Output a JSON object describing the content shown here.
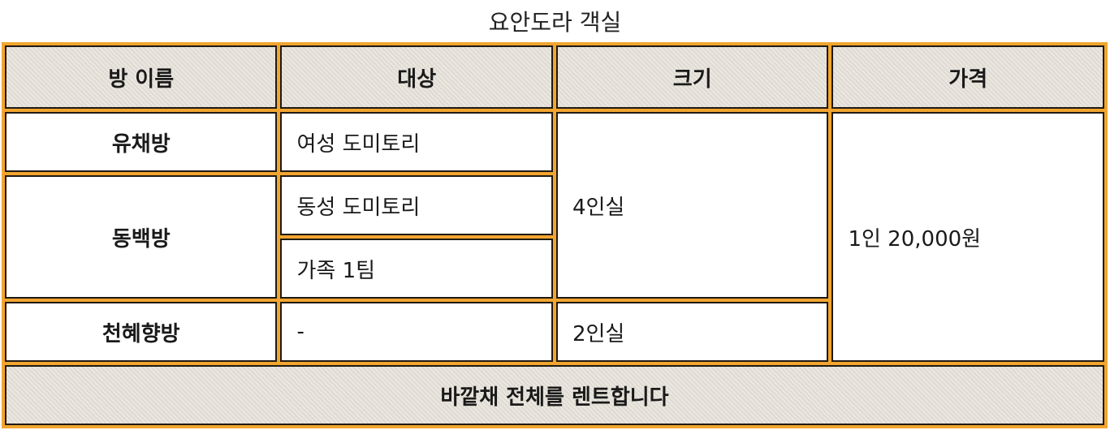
{
  "caption": "요안도라 객실",
  "headers": {
    "name": "방 이름",
    "target": "대상",
    "size": "크기",
    "price": "가격"
  },
  "rooms": {
    "yuchae": {
      "name": "유채방",
      "target": "여성 도미토리"
    },
    "dongbaek": {
      "name": "동백방",
      "target_1": "동성 도미토리",
      "target_2": "가족 1팀"
    },
    "cheonhye": {
      "name": "천혜향방",
      "target": "-",
      "size": "2인실"
    },
    "shared_size": "4인실",
    "shared_price": "1인 20,000원"
  },
  "footer": "바깥채 전체를 렌트합니다"
}
